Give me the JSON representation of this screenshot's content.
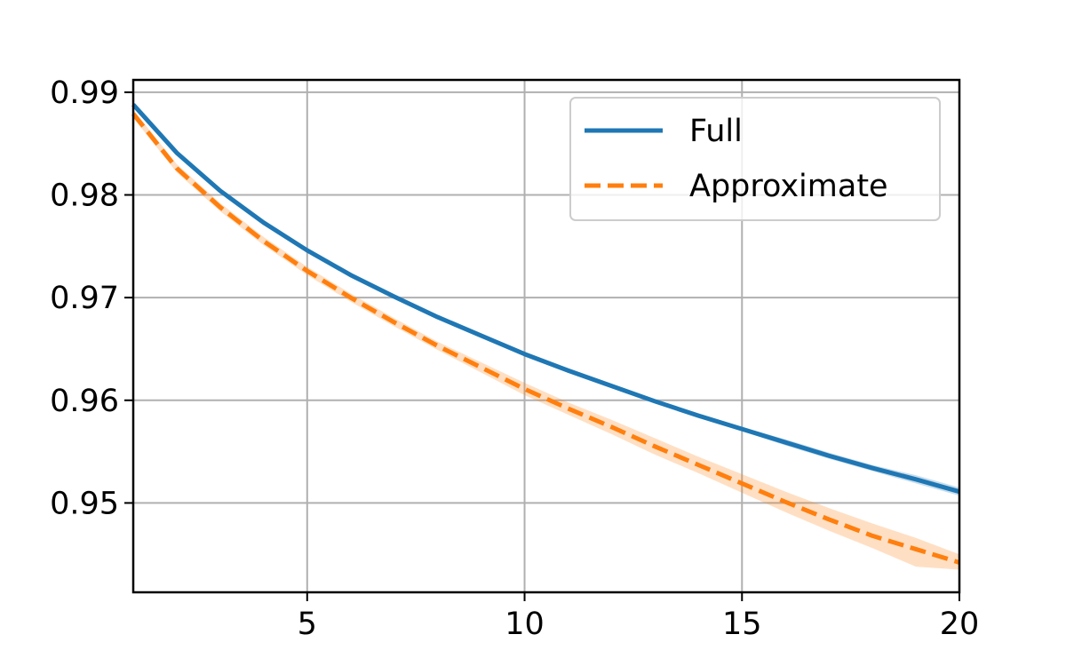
{
  "chart_data": {
    "type": "line",
    "title": "",
    "xlabel": "",
    "ylabel": "",
    "xlim": [
      1,
      20
    ],
    "ylim": [
      0.9413,
      0.9912
    ],
    "grid": true,
    "legend_position": "top-right",
    "x_ticks": [
      5,
      10,
      15,
      20
    ],
    "x_tick_labels": [
      "5",
      "10",
      "15",
      "20"
    ],
    "y_ticks": [
      0.95,
      0.96,
      0.97,
      0.98,
      0.99
    ],
    "y_tick_labels": [
      "0.95",
      "0.96",
      "0.97",
      "0.98",
      "0.99"
    ],
    "x": [
      1,
      2,
      3,
      4,
      5,
      6,
      7,
      8,
      9,
      10,
      11,
      12,
      13,
      14,
      15,
      16,
      17,
      18,
      19,
      20
    ],
    "series": [
      {
        "name": "Full",
        "color": "#1f77b4",
        "dash": "solid",
        "values": [
          0.9888,
          0.9841,
          0.9804,
          0.9773,
          0.9746,
          0.9722,
          0.9701,
          0.9681,
          0.9663,
          0.9645,
          0.9629,
          0.9614,
          0.9599,
          0.9585,
          0.9572,
          0.9559,
          0.9546,
          0.9534,
          0.9523,
          0.9511
        ],
        "band_lower": [
          0.9886,
          0.9839,
          0.9802,
          0.9771,
          0.9744,
          0.972,
          0.9699,
          0.9679,
          0.9661,
          0.9643,
          0.9627,
          0.9612,
          0.9597,
          0.9583,
          0.957,
          0.9556,
          0.9543,
          0.9531,
          0.9519,
          0.9507
        ],
        "band_upper": [
          0.989,
          0.9843,
          0.9806,
          0.9775,
          0.9748,
          0.9724,
          0.9703,
          0.9683,
          0.9665,
          0.9647,
          0.9631,
          0.9616,
          0.9601,
          0.9587,
          0.9574,
          0.9562,
          0.9549,
          0.9537,
          0.9527,
          0.9515
        ]
      },
      {
        "name": "Approximate",
        "color": "#ff7f0e",
        "dash": "dashed",
        "values": [
          0.9879,
          0.9826,
          0.9788,
          0.9755,
          0.9726,
          0.97,
          0.9676,
          0.9653,
          0.9632,
          0.9611,
          0.9592,
          0.9574,
          0.9555,
          0.9537,
          0.9519,
          0.9501,
          0.9484,
          0.9468,
          0.9455,
          0.9442
        ],
        "band_lower": [
          0.9875,
          0.9822,
          0.9784,
          0.9751,
          0.9722,
          0.9696,
          0.9672,
          0.9649,
          0.9627,
          0.9605,
          0.9586,
          0.9567,
          0.9547,
          0.9529,
          0.951,
          0.9491,
          0.9473,
          0.9456,
          0.9438,
          0.9435
        ],
        "band_upper": [
          0.9883,
          0.983,
          0.9792,
          0.9759,
          0.973,
          0.9704,
          0.968,
          0.9657,
          0.9637,
          0.9617,
          0.9598,
          0.9581,
          0.9563,
          0.9545,
          0.9528,
          0.9511,
          0.9495,
          0.948,
          0.9466,
          0.945
        ]
      }
    ]
  }
}
